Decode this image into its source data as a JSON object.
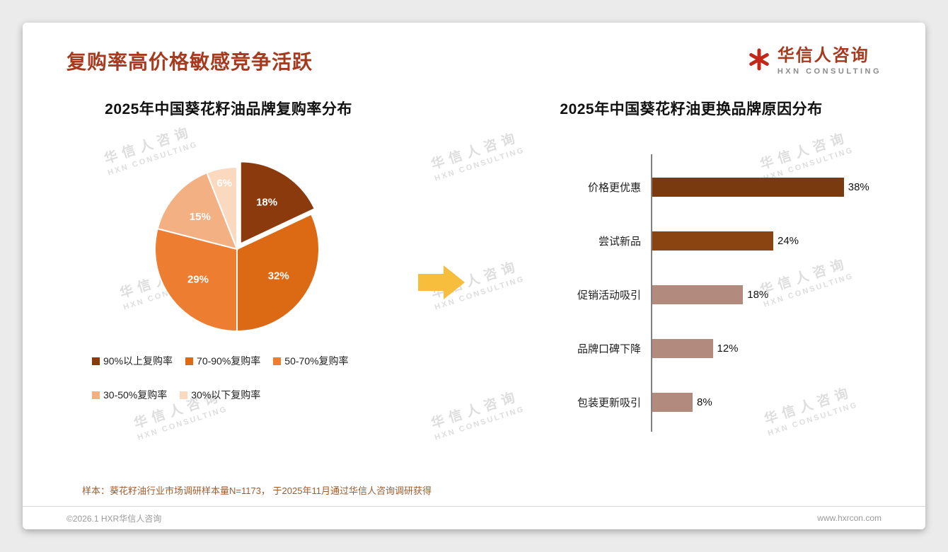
{
  "header": {
    "title": "复购率高价格敏感竞争活跃"
  },
  "logo": {
    "name": "华信人咨询",
    "subtitle": "HXN CONSULTING"
  },
  "watermark": {
    "line1": "华信人咨询",
    "line2": "HXN CONSULTING"
  },
  "chart_data": [
    {
      "type": "pie",
      "title": "2025年中国葵花籽油品牌复购率分布",
      "labels": [
        "90%以上复购率",
        "70-90%复购率",
        "50-70%复购率",
        "30-50%复购率",
        "30%以下复购率"
      ],
      "values": [
        18,
        32,
        29,
        15,
        6
      ],
      "value_suffix": "%",
      "colors": [
        "#8B3A0D",
        "#DC6914",
        "#ED7D31",
        "#F3B183",
        "#FBD9BF"
      ],
      "start_angle": "top",
      "direction": "clockwise",
      "exploded_slice": "90%以上复购率",
      "legend_position": "bottom"
    },
    {
      "type": "bar",
      "title": "2025年中国葵花籽油更换品牌原因分布",
      "orientation": "horizontal",
      "categories": [
        "价格更优惠",
        "尝试新品",
        "促销活动吸引",
        "品牌口碑下降",
        "包装更新吸引"
      ],
      "values": [
        38,
        24,
        18,
        12,
        8
      ],
      "value_suffix": "%",
      "colors": [
        "#7A3A10",
        "#8A4412",
        "#B28B7E",
        "#B28B7E",
        "#B28B7E"
      ],
      "xlim": [
        0,
        40
      ],
      "grid": false,
      "axis_line": true
    }
  ],
  "footer": {
    "note": "样本：葵花籽油行业市场调研样本量N=1173， 于2025年11月通过华信人咨询调研获得",
    "copyright": "©2026.1 HXR华信人咨询",
    "website": "www.hxrcon.com"
  },
  "accent_colors": {
    "title_red": "#A63A1E",
    "arrow_gold": "#F6BE3C"
  }
}
